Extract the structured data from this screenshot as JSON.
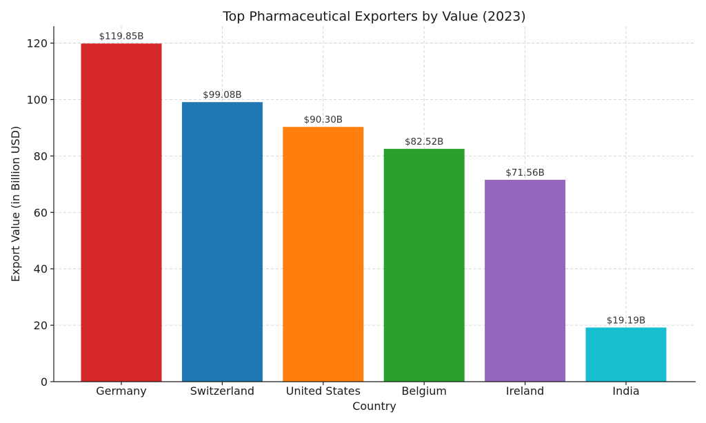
{
  "chart_data": {
    "type": "bar",
    "title": "Top Pharmaceutical Exporters by Value (2023)",
    "xlabel": "Country",
    "ylabel": "Export Value (in Billion USD)",
    "categories": [
      "Germany",
      "Switzerland",
      "United States",
      "Belgium",
      "Ireland",
      "India"
    ],
    "values": [
      119.85,
      99.08,
      90.3,
      82.52,
      71.56,
      19.19
    ],
    "value_labels": [
      "$119.85B",
      "$99.08B",
      "$90.30B",
      "$82.52B",
      "$71.56B",
      "$19.19B"
    ],
    "colors": [
      "#d62728",
      "#1f77b4",
      "#ff7f0e",
      "#2ca02c",
      "#9467bd",
      "#17becf"
    ],
    "ylim": [
      0,
      126
    ],
    "yticks": [
      0,
      20,
      40,
      60,
      80,
      100,
      120
    ],
    "grid": true,
    "legend": "none"
  }
}
